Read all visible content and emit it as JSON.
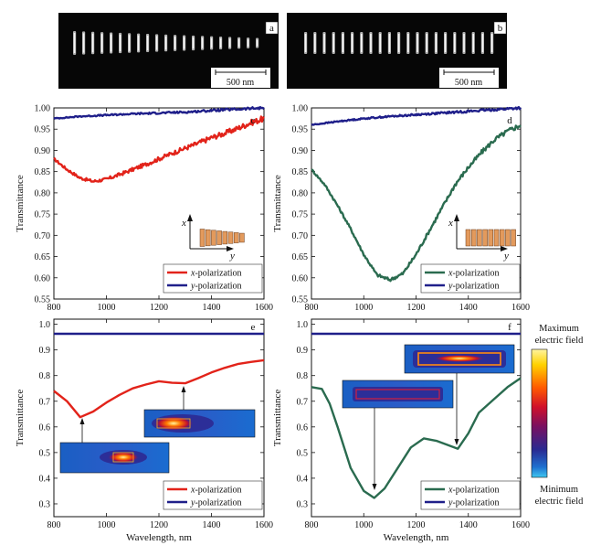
{
  "figure": {
    "panels": [
      {
        "id": "a",
        "label": "a",
        "scale_bar": "500 nm"
      },
      {
        "id": "b",
        "label": "b",
        "scale_bar": "500 nm"
      }
    ],
    "colorbar": {
      "max_label_1": "Maximum",
      "max_label_2": "electric field",
      "min_label_1": "Minimum",
      "min_label_2": "electric field"
    },
    "colors": {
      "x_measured": "#e2231a",
      "y": "#1f1f8a",
      "x_d": "#2a6b4f",
      "x_f": "#2a6b4f"
    }
  },
  "chart_data": [
    {
      "id": "c",
      "type": "line",
      "panel_label": "c",
      "xlabel": "",
      "ylabel": "Transmittance",
      "xlim": [
        800,
        1600
      ],
      "ylim": [
        0.55,
        1.0
      ],
      "xticks": [
        "800",
        "1000",
        "1200",
        "1400",
        "1600"
      ],
      "yticks": [
        "0.55",
        "0.60",
        "0.65",
        "0.70",
        "0.75",
        "0.80",
        "0.85",
        "0.90",
        "0.95",
        "1.00"
      ],
      "legend": [
        {
          "pre": "x",
          "post": "-polarization"
        },
        {
          "pre": "y",
          "post": "-polarization"
        }
      ],
      "inset_axes": {
        "x": "x",
        "y": "y"
      },
      "series": [
        {
          "name": "x-polarization",
          "color": "#e2231a",
          "noise": 0.007,
          "x": [
            800,
            850,
            900,
            950,
            1000,
            1050,
            1100,
            1150,
            1200,
            1250,
            1300,
            1350,
            1400,
            1450,
            1500,
            1550,
            1600
          ],
          "y": [
            0.88,
            0.855,
            0.835,
            0.827,
            0.832,
            0.843,
            0.855,
            0.867,
            0.88,
            0.893,
            0.905,
            0.917,
            0.93,
            0.94,
            0.952,
            0.965,
            0.975
          ]
        },
        {
          "name": "y-polarization",
          "color": "#1f1f8a",
          "noise": 0.003,
          "x": [
            800,
            900,
            1000,
            1100,
            1200,
            1300,
            1400,
            1500,
            1600
          ],
          "y": [
            0.975,
            0.98,
            0.983,
            0.986,
            0.988,
            0.99,
            0.994,
            0.997,
            1.0
          ]
        }
      ]
    },
    {
      "id": "d",
      "type": "line",
      "panel_label": "d",
      "xlabel": "",
      "ylabel": "Transmittance",
      "xlim": [
        800,
        1600
      ],
      "ylim": [
        0.55,
        1.0
      ],
      "xticks": [
        "800",
        "1000",
        "1200",
        "1400",
        "1600"
      ],
      "yticks": [
        "0.55",
        "0.60",
        "0.65",
        "0.70",
        "0.75",
        "0.80",
        "0.85",
        "0.90",
        "0.95",
        "1.00"
      ],
      "legend": [
        {
          "pre": "x",
          "post": "-polarization"
        },
        {
          "pre": "y",
          "post": "-polarization"
        }
      ],
      "inset_axes": {
        "x": "x",
        "y": "y"
      },
      "series": [
        {
          "name": "x-polarization",
          "color": "#2a6b4f",
          "noise": 0.006,
          "x": [
            800,
            850,
            900,
            950,
            1000,
            1050,
            1100,
            1150,
            1200,
            1250,
            1300,
            1350,
            1400,
            1450,
            1500,
            1550,
            1600
          ],
          "y": [
            0.855,
            0.82,
            0.77,
            0.715,
            0.655,
            0.607,
            0.595,
            0.61,
            0.655,
            0.71,
            0.765,
            0.82,
            0.86,
            0.895,
            0.925,
            0.945,
            0.96
          ]
        },
        {
          "name": "y-polarization",
          "color": "#1f1f8a",
          "noise": 0.003,
          "x": [
            800,
            900,
            1000,
            1100,
            1200,
            1300,
            1400,
            1500,
            1600
          ],
          "y": [
            0.96,
            0.968,
            0.975,
            0.98,
            0.984,
            0.988,
            0.992,
            0.996,
            1.0
          ]
        }
      ]
    },
    {
      "id": "e",
      "type": "line",
      "panel_label": "e",
      "xlabel": "Wavelength, nm",
      "ylabel": "Transmittance",
      "xlim": [
        800,
        1600
      ],
      "ylim": [
        0.25,
        1.02
      ],
      "xticks": [
        "800",
        "1000",
        "1200",
        "1400",
        "1600"
      ],
      "yticks": [
        "0.3",
        "0.4",
        "0.5",
        "0.6",
        "0.7",
        "0.8",
        "0.9",
        "1.0"
      ],
      "legend": [
        {
          "pre": "x",
          "post": "-polarization"
        },
        {
          "pre": "y",
          "post": "-polarization"
        }
      ],
      "series": [
        {
          "name": "x-polarization",
          "color": "#e2231a",
          "noise": 0,
          "x": [
            800,
            850,
            900,
            950,
            1000,
            1050,
            1100,
            1150,
            1200,
            1250,
            1300,
            1350,
            1400,
            1450,
            1500,
            1550,
            1600
          ],
          "y": [
            0.74,
            0.7,
            0.638,
            0.66,
            0.695,
            0.725,
            0.75,
            0.765,
            0.778,
            0.772,
            0.77,
            0.79,
            0.812,
            0.83,
            0.845,
            0.853,
            0.86
          ]
        },
        {
          "name": "y-polarization",
          "color": "#1f1f8a",
          "noise": 0,
          "x": [
            800,
            1600
          ],
          "y": [
            0.963,
            0.963
          ]
        }
      ]
    },
    {
      "id": "f",
      "type": "line",
      "panel_label": "f",
      "xlabel": "Wavelength, nm",
      "ylabel": "Transmittance",
      "xlim": [
        800,
        1600
      ],
      "ylim": [
        0.25,
        1.02
      ],
      "xticks": [
        "800",
        "1000",
        "1200",
        "1400",
        "1600"
      ],
      "yticks": [
        "0.3",
        "0.4",
        "0.5",
        "0.6",
        "0.7",
        "0.8",
        "0.9",
        "1.0"
      ],
      "legend": [
        {
          "pre": "x",
          "post": "-polarization"
        },
        {
          "pre": "y",
          "post": "-polarization"
        }
      ],
      "series": [
        {
          "name": "x-polarization",
          "color": "#2a6b4f",
          "noise": 0,
          "x": [
            800,
            840,
            870,
            900,
            950,
            1000,
            1040,
            1080,
            1130,
            1180,
            1230,
            1280,
            1320,
            1360,
            1400,
            1440,
            1500,
            1550,
            1600
          ],
          "y": [
            0.755,
            0.748,
            0.69,
            0.6,
            0.44,
            0.35,
            0.323,
            0.36,
            0.44,
            0.52,
            0.555,
            0.545,
            0.53,
            0.515,
            0.575,
            0.655,
            0.71,
            0.755,
            0.79
          ]
        },
        {
          "name": "y-polarization",
          "color": "#1f1f8a",
          "noise": 0,
          "x": [
            800,
            1600
          ],
          "y": [
            0.963,
            0.963
          ]
        }
      ]
    }
  ]
}
